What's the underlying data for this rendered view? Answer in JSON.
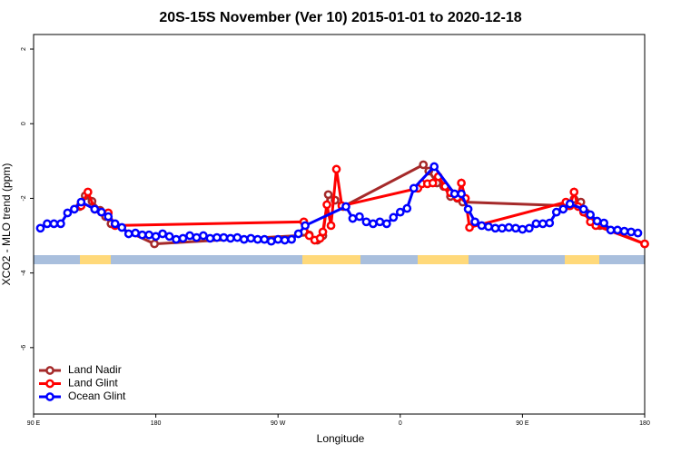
{
  "chart_data": {
    "type": "line",
    "title": "20S-15S November (Ver 10)   2015-01-01 to 2020-12-18",
    "x_label": "Longitude",
    "y_label": "XCO2 - MLO trend (ppm)",
    "xlim": [
      90,
      540
    ],
    "xticks": [
      {
        "value": 90,
        "label": "90 E"
      },
      {
        "value": 180,
        "label": "180"
      },
      {
        "value": 270,
        "label": "90 W"
      },
      {
        "value": 360,
        "label": "0"
      },
      {
        "value": 450,
        "label": "90 E"
      },
      {
        "value": 540,
        "label": "180"
      }
    ],
    "ylim": [
      -7.78,
      2.39
    ],
    "yticks": [
      2,
      0,
      -2,
      -4,
      -6
    ],
    "legend": "bottom-left",
    "series": [
      {
        "name": "Land Nadir",
        "color": "#a52a2a",
        "x": [
          124,
          128,
          133,
          139,
          143,
          147,
          179,
          293,
          299,
          303,
          307,
          312,
          318,
          377,
          381,
          387,
          392,
          397,
          402,
          406,
          483,
          488,
          493,
          497,
          502,
          507,
          540
        ],
        "values": [
          -2.22,
          -1.93,
          -2.08,
          -2.32,
          -2.49,
          -2.68,
          -3.22,
          -2.98,
          -3.12,
          -3.0,
          -1.9,
          -2.05,
          -2.22,
          -1.1,
          -1.27,
          -1.59,
          -1.68,
          -1.95,
          -2.0,
          -2.1,
          -2.2,
          -2.02,
          -2.1,
          -2.39,
          -2.63,
          -2.73,
          -3.22
        ]
      },
      {
        "name": "Land Glint",
        "color": "#ff0000",
        "x": [
          125,
          130,
          135,
          140,
          145,
          150,
          289,
          293,
          297,
          301,
          303,
          306,
          309,
          313,
          317,
          373,
          376,
          380,
          384,
          388,
          393,
          397,
          402,
          405,
          408,
          411,
          482,
          485,
          488,
          491,
          495,
          500,
          504,
          540
        ],
        "values": [
          -2.2,
          -1.83,
          -2.29,
          -2.37,
          -2.39,
          -2.73,
          -2.63,
          -3.0,
          -3.12,
          -3.07,
          -2.9,
          -2.17,
          -2.73,
          -1.22,
          -2.2,
          -1.73,
          -1.61,
          -1.61,
          -1.59,
          -1.42,
          -1.68,
          -1.85,
          -1.98,
          -1.59,
          -2.0,
          -2.78,
          -2.1,
          -2.2,
          -1.83,
          -2.22,
          -2.37,
          -2.63,
          -2.73,
          -3.22
        ]
      },
      {
        "name": "Ocean Glint",
        "color": "#0000ff",
        "x": [
          95,
          100,
          105,
          110,
          115,
          120,
          125,
          135,
          140,
          145,
          150,
          155,
          160,
          165,
          170,
          175,
          180,
          185,
          190,
          195,
          200,
          205,
          210,
          215,
          220,
          225,
          230,
          235,
          240,
          245,
          250,
          255,
          260,
          265,
          270,
          275,
          280,
          285,
          290,
          320,
          325,
          330,
          335,
          340,
          345,
          350,
          355,
          360,
          365,
          370,
          385,
          400,
          405,
          410,
          415,
          420,
          425,
          430,
          435,
          440,
          445,
          450,
          455,
          460,
          465,
          470,
          475,
          480,
          485,
          495,
          500,
          505,
          510,
          515,
          520,
          525,
          530,
          535
        ],
        "values": [
          -2.8,
          -2.68,
          -2.68,
          -2.68,
          -2.39,
          -2.29,
          -2.1,
          -2.29,
          -2.37,
          -2.49,
          -2.68,
          -2.78,
          -2.95,
          -2.93,
          -2.98,
          -2.98,
          -3.02,
          -2.95,
          -3.02,
          -3.1,
          -3.07,
          -3.0,
          -3.05,
          -3.0,
          -3.07,
          -3.05,
          -3.05,
          -3.07,
          -3.05,
          -3.1,
          -3.07,
          -3.1,
          -3.1,
          -3.15,
          -3.1,
          -3.12,
          -3.1,
          -2.95,
          -2.73,
          -2.22,
          -2.54,
          -2.49,
          -2.63,
          -2.68,
          -2.63,
          -2.68,
          -2.51,
          -2.37,
          -2.27,
          -1.73,
          -1.15,
          -1.88,
          -1.88,
          -2.29,
          -2.63,
          -2.73,
          -2.76,
          -2.8,
          -2.8,
          -2.78,
          -2.8,
          -2.83,
          -2.8,
          -2.68,
          -2.68,
          -2.66,
          -2.37,
          -2.29,
          -2.15,
          -2.29,
          -2.44,
          -2.61,
          -2.66,
          -2.85,
          -2.85,
          -2.88,
          -2.9,
          -2.93
        ]
      }
    ]
  }
}
